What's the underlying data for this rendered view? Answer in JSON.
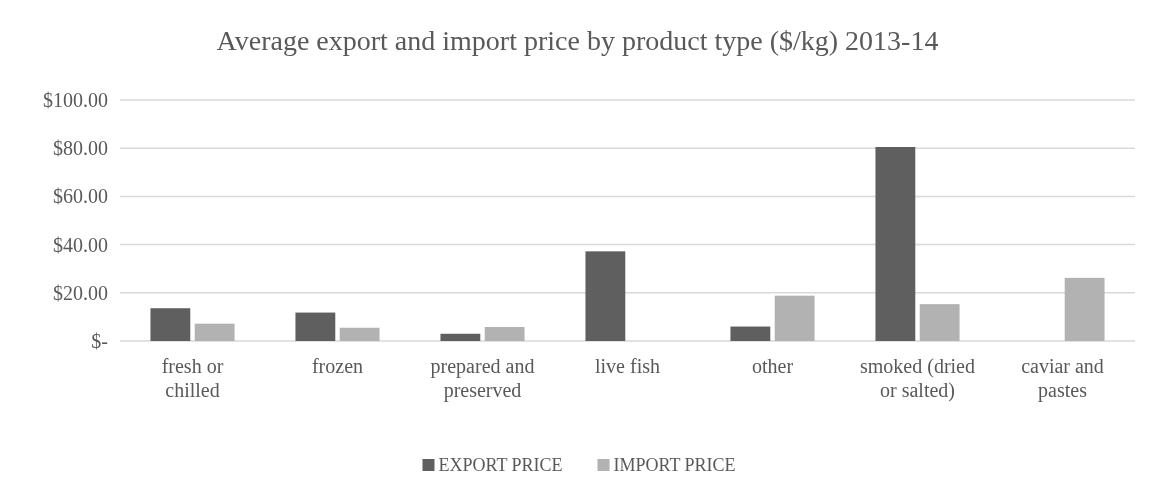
{
  "chart_data": {
    "type": "bar",
    "title": "Average export and import price by product type ($/kg) 2013-14",
    "categories": [
      "fresh or chilled",
      "frozen",
      "prepared and preserved",
      "live fish",
      "other",
      "smoked (dried or salted)",
      "caviar and pastes"
    ],
    "series": [
      {
        "name": "EXPORT PRICE",
        "color": "#5f5f5f",
        "values": [
          13.6,
          11.8,
          3.0,
          37.2,
          6.0,
          80.5,
          null
        ]
      },
      {
        "name": "IMPORT PRICE",
        "color": "#b2b2b2",
        "values": [
          7.2,
          5.5,
          5.8,
          null,
          18.8,
          15.3,
          26.2
        ]
      }
    ],
    "ylim": [
      0,
      100
    ],
    "yticks": [
      {
        "value": 0,
        "label": "$-"
      },
      {
        "value": 20,
        "label": "$20.00"
      },
      {
        "value": 40,
        "label": "$40.00"
      },
      {
        "value": 60,
        "label": "$60.00"
      },
      {
        "value": 80,
        "label": "$80.00"
      },
      {
        "value": 100,
        "label": "$100.00"
      }
    ],
    "grid": "y",
    "legend": "bottom"
  }
}
